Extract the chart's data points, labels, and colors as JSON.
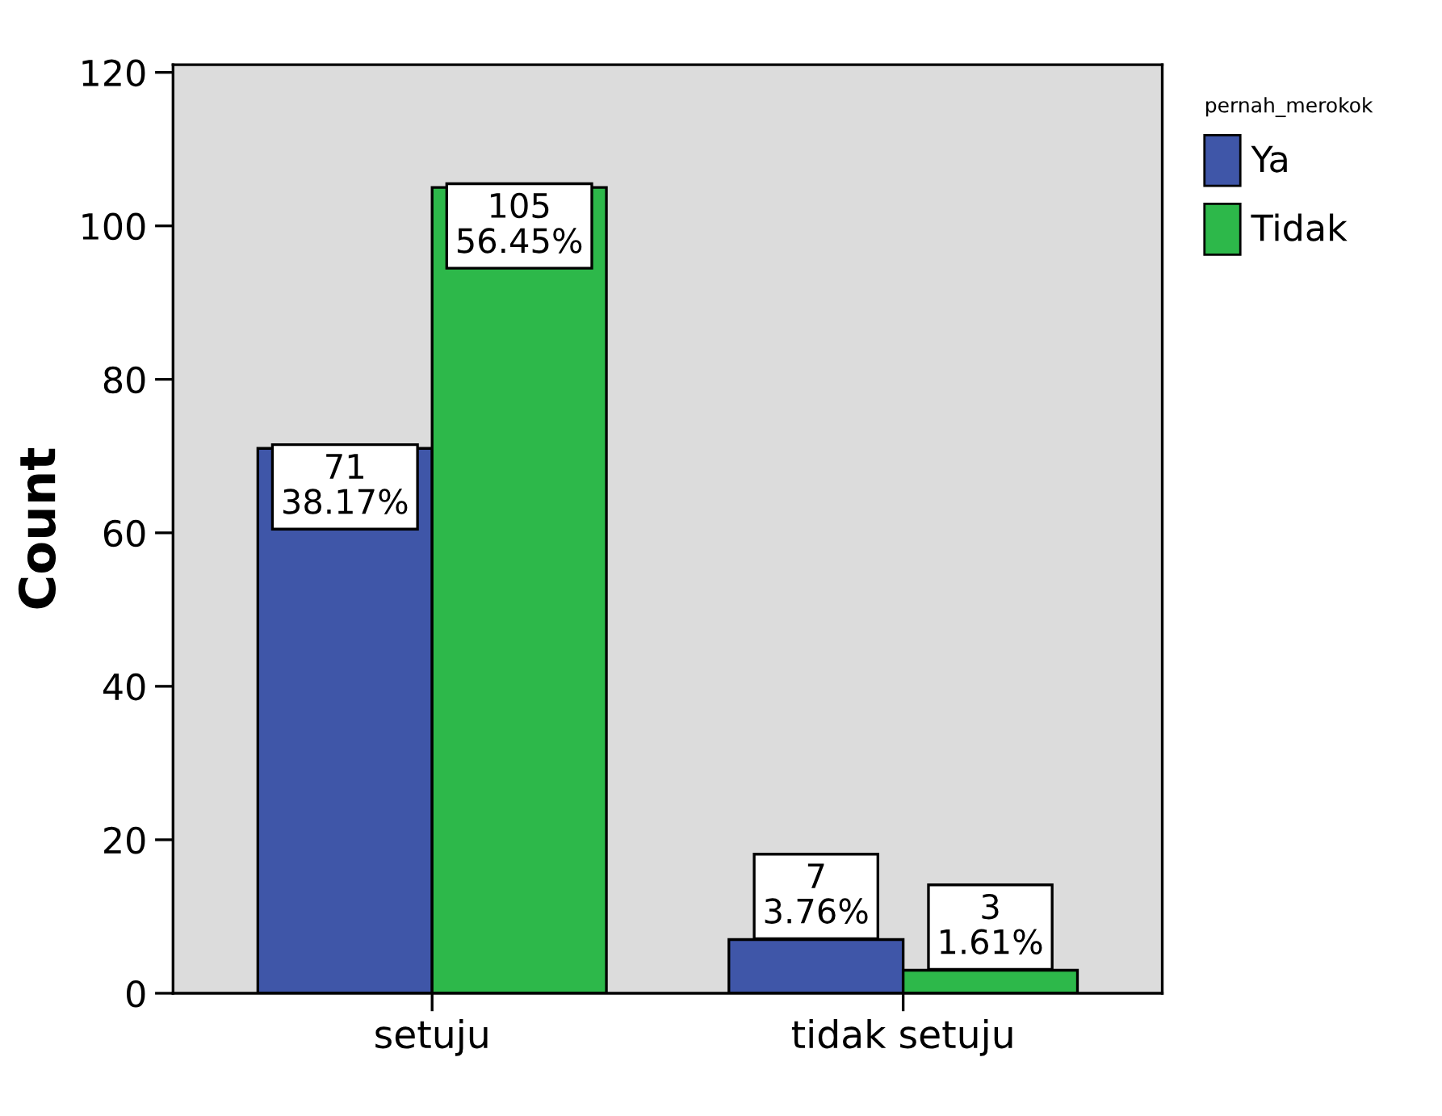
{
  "chart_data": {
    "type": "bar",
    "ylabel": "Count",
    "legend_title": "pernah_merokok",
    "categories": [
      "setuju",
      "tidak setuju"
    ],
    "series": [
      {
        "name": "Ya",
        "color": "#3f56a8",
        "values": [
          71,
          7
        ],
        "value_labels": [
          "71\n38.17%",
          "7\n3.76%"
        ]
      },
      {
        "name": "Tidak",
        "color": "#2db84a",
        "values": [
          105,
          3
        ],
        "value_labels": [
          "105\n56.45%",
          "3\n1.61%"
        ]
      }
    ],
    "ylim": [
      0,
      121
    ],
    "yticks": [
      0,
      20,
      40,
      60,
      80,
      100,
      120
    ],
    "grid": false,
    "legend": "top right"
  }
}
